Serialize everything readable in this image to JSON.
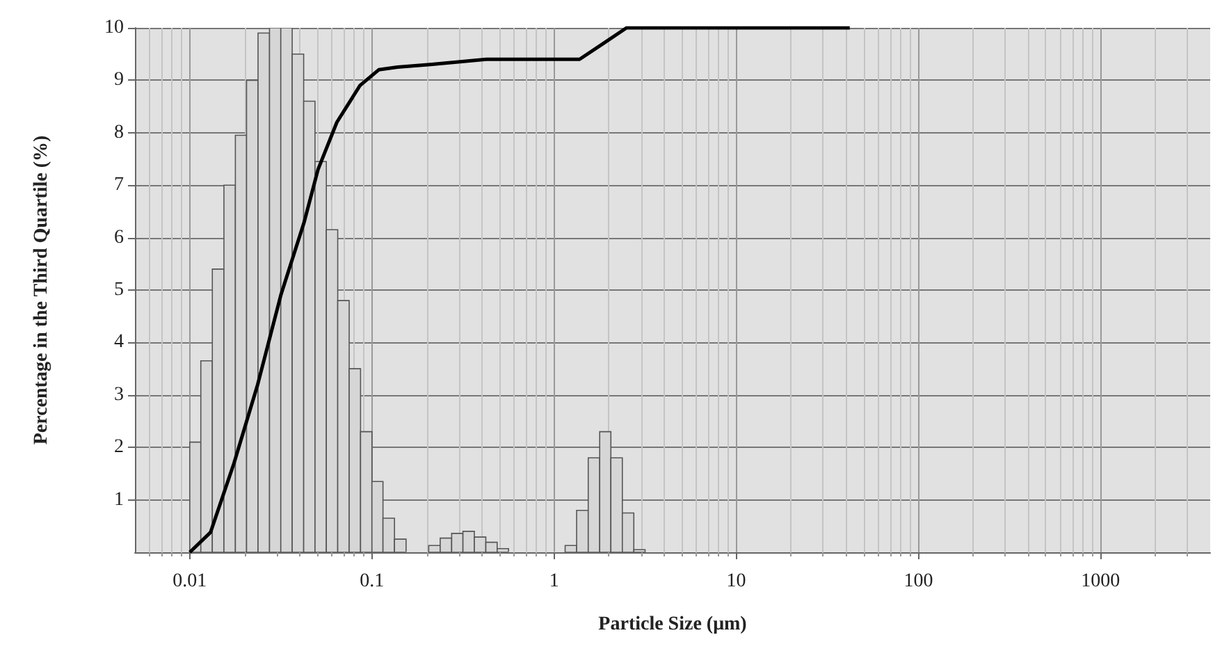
{
  "chart_data": {
    "type": "histogram",
    "xlabel": "Particle Size (μm)",
    "ylabel": "Percentage in the Third Quartile (%)",
    "bins": [
      0.01,
      0.0115,
      0.0133,
      0.0154,
      0.0178,
      0.0205,
      0.0237,
      0.0274,
      0.0316,
      0.0365,
      0.0422,
      0.0487,
      0.0562,
      0.0649,
      0.075,
      0.0866,
      0.1,
      0.115,
      0.133,
      0.154,
      0.178,
      0.205,
      0.237,
      0.274,
      0.316,
      0.365,
      0.422,
      0.487,
      0.562,
      0.649,
      0.75,
      0.866,
      1,
      1.15,
      1.33,
      1.54,
      1.78,
      2.05,
      2.37,
      2.74,
      3.16
    ],
    "values": [
      2.1,
      3.65,
      5.4,
      7,
      7.95,
      9,
      9.9,
      10,
      10,
      9.5,
      8.6,
      7.45,
      6.15,
      4.8,
      3.5,
      2.3,
      1.35,
      0.65,
      0.25,
      0,
      0,
      0.13,
      0.27,
      0.36,
      0.4,
      0.29,
      0.19,
      0.07,
      0,
      0,
      0,
      0,
      0,
      0.13,
      0.8,
      1.8,
      2.3,
      1.8,
      0.75,
      0.05
    ],
    "color": "#d6d6d6",
    "series": [
      {
        "type": "line",
        "color": "#000000",
        "x": [
          0.01,
          0.013,
          0.0175,
          0.0236,
          0.0316,
          0.0425,
          0.0506,
          0.0642,
          0.086,
          0.109,
          0.138,
          0.209,
          0.425,
          1.38,
          1.86,
          2.5,
          42
        ],
        "values": [
          0,
          0.38,
          1.7,
          3.2,
          4.9,
          6.3,
          7.3,
          8.2,
          8.9,
          9.2,
          9.25,
          9.3,
          9.4,
          9.4,
          9.7,
          10,
          10
        ]
      }
    ],
    "log": "x",
    "xlim": [
      0.005,
      4000
    ],
    "xticks": [
      0.01,
      0.1,
      1,
      10,
      100,
      1000
    ],
    "ylim": [
      0,
      10
    ],
    "yticks": [
      1,
      2,
      3,
      4,
      5,
      6,
      7,
      8,
      9,
      10
    ],
    "grid": true
  }
}
